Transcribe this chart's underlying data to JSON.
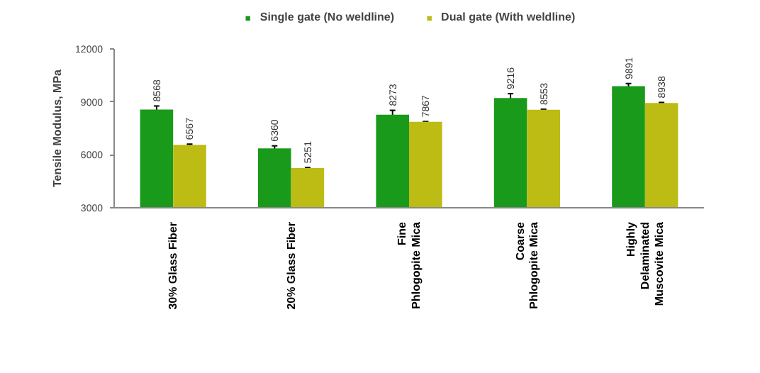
{
  "chart_data": {
    "type": "bar",
    "ylabel": "Tensile Modulus, MPa",
    "categories": [
      "30% Glass Fiber",
      "20% Glass Fiber",
      "Fine\nPhlogopite Mica",
      "Coarse\nPhlogopite Mica",
      "Highly\nDelaminated\nMuscovite Mica"
    ],
    "series": [
      {
        "name": "Single gate (No weldline)",
        "color": "#1a9a1a",
        "values": [
          8568,
          6360,
          8273,
          9216,
          9891
        ],
        "errors": [
          200,
          150,
          250,
          250,
          150
        ]
      },
      {
        "name": "Dual gate (With weldline)",
        "color": "#bcbc14",
        "values": [
          6567,
          5251,
          7867,
          8553,
          8938
        ],
        "errors": [
          40,
          30,
          20,
          30,
          30
        ]
      }
    ],
    "ylim": [
      3000,
      12000
    ],
    "yticks": [
      3000,
      6000,
      9000,
      12000
    ],
    "grid": false,
    "legend": "top",
    "data_labels": true
  }
}
